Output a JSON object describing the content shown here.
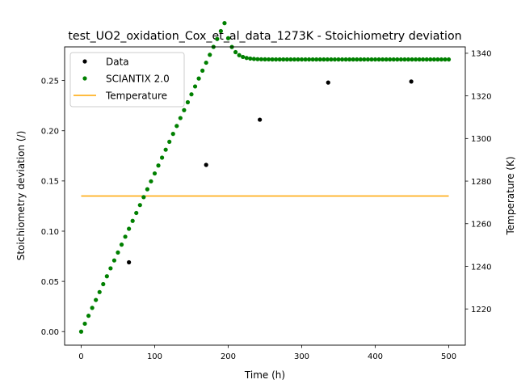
{
  "chart_data": {
    "type": "scatter",
    "title": "test_UO2_oxidation_Cox_et_al_data_1273K - Stoichiometry deviation",
    "xlabel": "Time (h)",
    "ylabel": "Stoichiometry deviation (/)",
    "y2label": "Temperature (K)",
    "xlim": [
      -22.5,
      522.5
    ],
    "ylim": [
      -0.0135,
      0.2835
    ],
    "y2lim": [
      1203,
      1343
    ],
    "xticks": [
      0,
      100,
      200,
      300,
      400,
      500
    ],
    "yticks": [
      0.0,
      0.05,
      0.1,
      0.15,
      0.2,
      0.25
    ],
    "y2ticks": [
      1220,
      1240,
      1260,
      1280,
      1300,
      1320,
      1340
    ],
    "legend_position": "upper left",
    "series": [
      {
        "name": "Data",
        "color": "#000000",
        "marker": "dot",
        "axis": "left",
        "points": [
          [
            65,
            0.069
          ],
          [
            170,
            0.166
          ],
          [
            243,
            0.211
          ],
          [
            336,
            0.248
          ],
          [
            449,
            0.249
          ]
        ]
      },
      {
        "name": "SCIANTIX 2.0",
        "color": "#008000",
        "marker": "dot",
        "axis": "left",
        "model": {
          "t_start": 0,
          "t_end": 500,
          "count": 101,
          "slope_per_h": 0.001575,
          "t_sat": 195,
          "k_sat": 0.107,
          "y_sat": 0.271
        }
      },
      {
        "name": "Temperature",
        "color": "#ffa500",
        "marker": "line",
        "axis": "right",
        "points": [
          [
            0,
            1273
          ],
          [
            500,
            1273
          ]
        ]
      }
    ]
  }
}
